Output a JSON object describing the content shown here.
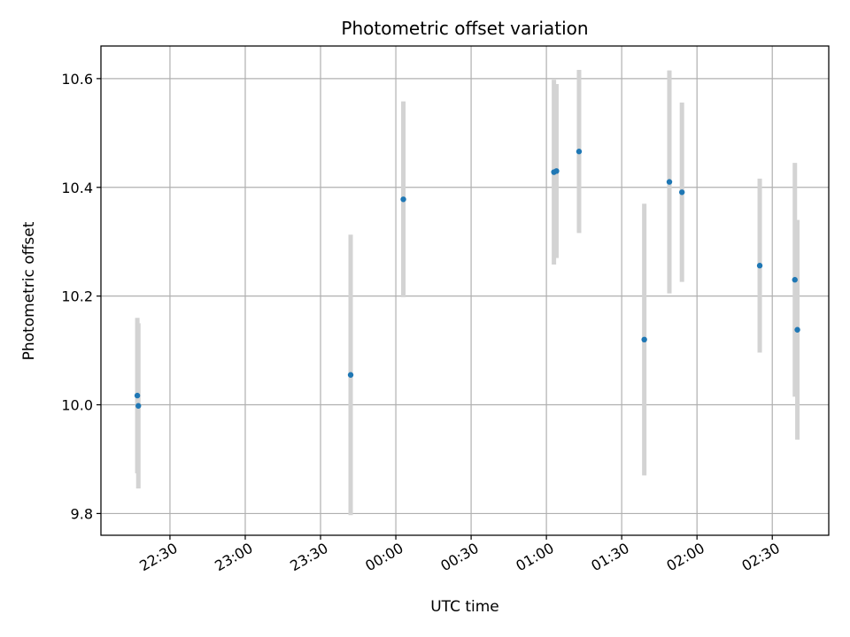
{
  "chart_data": {
    "type": "scatter",
    "title": "Photometric offset variation",
    "xlabel": "UTC time",
    "ylabel": "Photometric offset",
    "grid": true,
    "x_ticks": [
      {
        "label": "22:30",
        "minutes": 0
      },
      {
        "label": "23:00",
        "minutes": 30
      },
      {
        "label": "23:30",
        "minutes": 60
      },
      {
        "label": "00:00",
        "minutes": 90
      },
      {
        "label": "00:30",
        "minutes": 120
      },
      {
        "label": "01:00",
        "minutes": 150
      },
      {
        "label": "01:30",
        "minutes": 180
      },
      {
        "label": "02:00",
        "minutes": 210
      },
      {
        "label": "02:30",
        "minutes": 240
      }
    ],
    "y_ticks": [
      9.8,
      10.0,
      10.2,
      10.4,
      10.6
    ],
    "xlim_minutes": [
      -27.5,
      262.5
    ],
    "ylim": [
      9.76,
      10.66
    ],
    "colors": {
      "point": "#1f77b4",
      "errorbar": "#d3d3d3",
      "grid": "#b0b0b0"
    },
    "points": [
      {
        "time": "22:17",
        "value": 10.017,
        "error": 0.143
      },
      {
        "time": "22:17",
        "value": 9.998,
        "error": 0.152
      },
      {
        "time": "23:42",
        "value": 10.055,
        "error": 0.258
      },
      {
        "time": "00:03",
        "value": 10.378,
        "error": 0.18
      },
      {
        "time": "01:03",
        "value": 10.428,
        "error": 0.17
      },
      {
        "time": "01:04",
        "value": 10.43,
        "error": 0.16
      },
      {
        "time": "01:13",
        "value": 10.466,
        "error": 0.15
      },
      {
        "time": "01:39",
        "value": 10.12,
        "error": 0.25
      },
      {
        "time": "01:49",
        "value": 10.41,
        "error": 0.205
      },
      {
        "time": "01:54",
        "value": 10.391,
        "error": 0.165
      },
      {
        "time": "02:25",
        "value": 10.256,
        "error": 0.16
      },
      {
        "time": "02:39",
        "value": 10.23,
        "error": 0.215
      },
      {
        "time": "02:40",
        "value": 10.138,
        "error": 0.202
      }
    ]
  }
}
